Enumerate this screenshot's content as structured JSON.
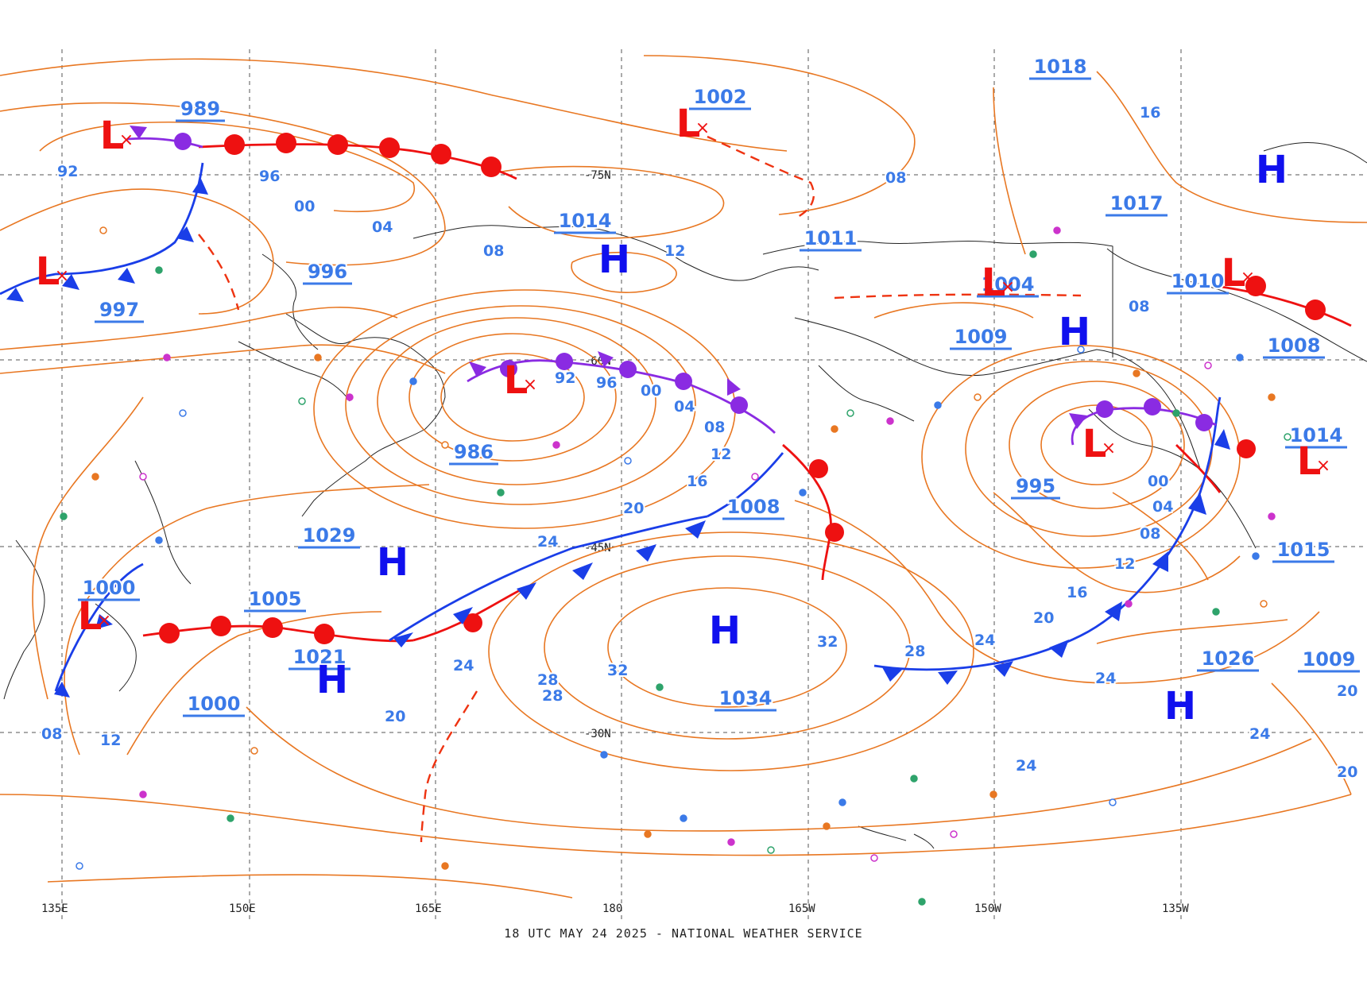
{
  "caption": "18 UTC MAY 24 2025 - NATIONAL WEATHER SERVICE",
  "colors": {
    "isobar": "#e87722",
    "pressure_center_label": "#3b7ae8",
    "isobar_label": "#3b7ae8",
    "high": "#1010ee",
    "low": "#ee1111",
    "warm_front": "#ee1111",
    "cold_front": "#1a3ee8",
    "occluded_front": "#8a2be2",
    "trough": "#ee3311",
    "grid": "#555555",
    "land": "#222222"
  },
  "grid": {
    "longitude_labels": [
      "135E",
      "150E",
      "165E",
      "180",
      "165W",
      "150W",
      "135W"
    ],
    "latitude_labels": [
      "-75N",
      "-60N",
      "-45N",
      "-30N"
    ]
  },
  "pressure_systems": [
    {
      "type": "H",
      "value": "1034"
    },
    {
      "type": "H",
      "value": "1021"
    },
    {
      "type": "H",
      "value": "1029"
    },
    {
      "type": "H",
      "value": "1014"
    },
    {
      "type": "H",
      "value": "1026"
    },
    {
      "type": "H",
      "value": "1017"
    },
    {
      "type": "H",
      "value": "1009"
    },
    {
      "type": "L",
      "value": "986"
    },
    {
      "type": "L",
      "value": "989"
    },
    {
      "type": "L",
      "value": "997"
    },
    {
      "type": "L",
      "value": "1000"
    },
    {
      "type": "L",
      "value": "1002"
    },
    {
      "type": "L",
      "value": "1008"
    },
    {
      "type": "L",
      "value": "995"
    },
    {
      "type": "L",
      "value": "1004"
    },
    {
      "type": "L",
      "value": "1010"
    }
  ],
  "center_value_labels": [
    "1018",
    "1002",
    "989",
    "1014",
    "1011",
    "1017",
    "1004",
    "1010",
    "1009",
    "996",
    "997",
    "1008",
    "986",
    "1014",
    "995",
    "1008",
    "1029",
    "1015",
    "1000",
    "1005",
    "1021",
    "1000",
    "1034",
    "1026",
    "1009"
  ],
  "isobar_labels": [
    "16",
    "92",
    "96",
    "00",
    "04",
    "08",
    "12",
    "08",
    "08",
    "92",
    "96",
    "00",
    "04",
    "08",
    "12",
    "16",
    "20",
    "24",
    "00",
    "04",
    "08",
    "12",
    "16",
    "20",
    "24",
    "28",
    "32",
    "28",
    "28",
    "32",
    "24",
    "20",
    "24",
    "24",
    "20",
    "08",
    "12",
    "24",
    "20"
  ]
}
